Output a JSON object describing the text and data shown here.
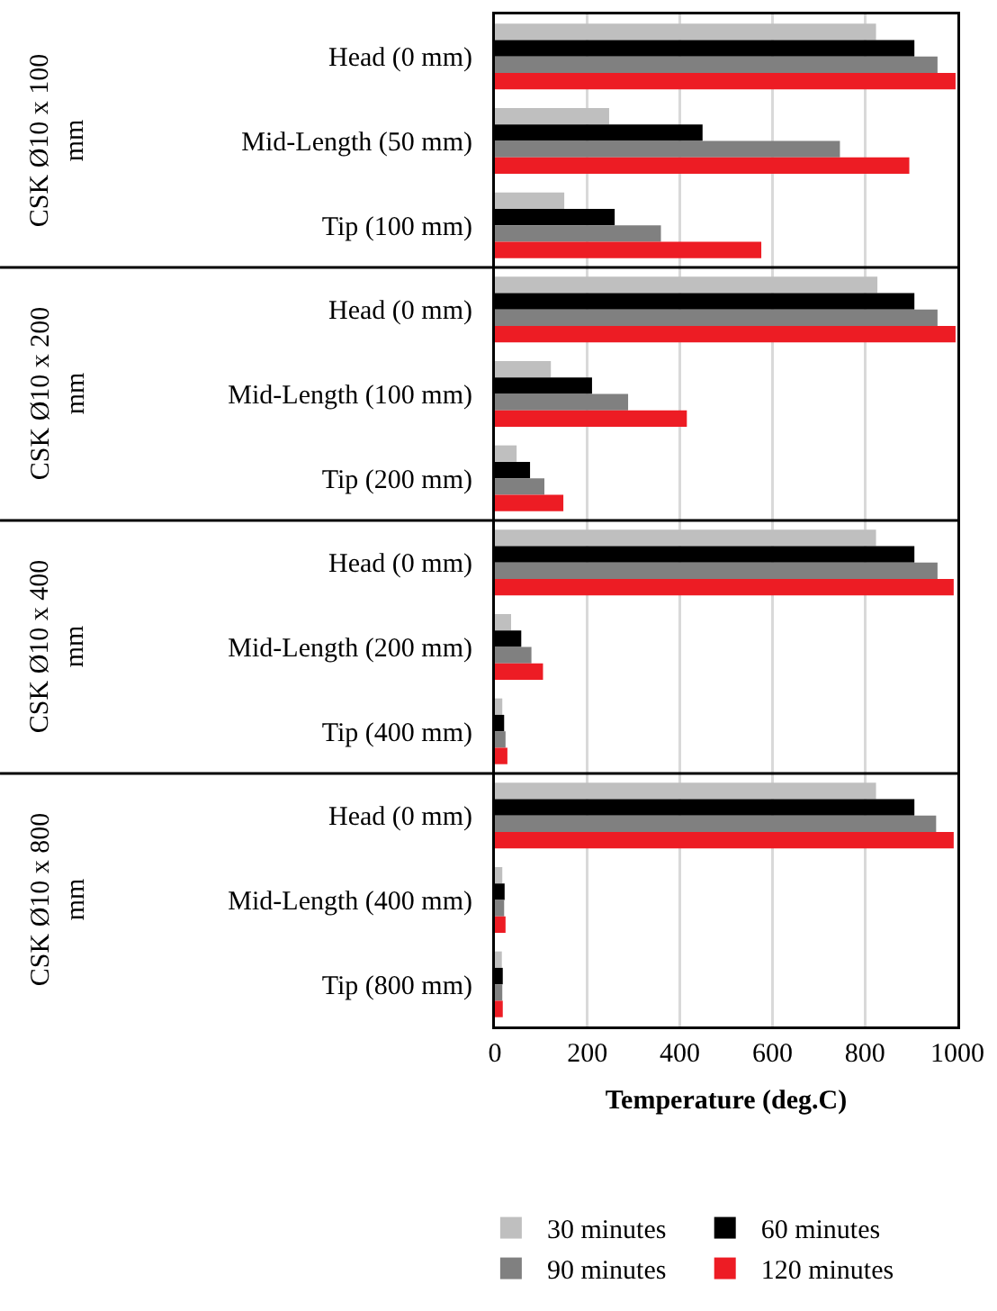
{
  "chart_data": {
    "type": "bar",
    "orientation": "horizontal",
    "xlabel": "Temperature (deg.C)",
    "categories": [
      "Head (0 mm)",
      "Mid-Length (50 mm)",
      "Tip (100 mm)",
      "Head (0 mm)",
      "Mid-Length (100 mm)",
      "Tip (200 mm)",
      "Head (0 mm)",
      "Mid-Length (200 mm)",
      "Tip (400 mm)",
      "Head (0 mm)",
      "Mid-Length (400 mm)",
      "Tip (800 mm)"
    ],
    "series": [
      {
        "name": "30 minutes",
        "color": "#bfbfbf",
        "values": [
          824,
          247,
          150,
          827,
          121,
          47,
          824,
          35,
          16,
          824,
          16,
          15
        ]
      },
      {
        "name": "60 minutes",
        "color": "#000000",
        "values": [
          907,
          449,
          259,
          907,
          210,
          76,
          907,
          57,
          20,
          907,
          21,
          17
        ]
      },
      {
        "name": "90 minutes",
        "color": "#808080",
        "values": [
          957,
          746,
          359,
          957,
          288,
          107,
          957,
          79,
          23,
          954,
          20,
          16
        ]
      },
      {
        "name": "120 minutes",
        "color": "#ed1c24",
        "values": [
          996,
          896,
          576,
          996,
          415,
          148,
          992,
          104,
          27,
          992,
          23,
          17
        ]
      }
    ],
    "annotations": [
      "CSK Ø10 x 100 mm",
      "CSK Ø10 x 200 mm",
      "CSK Ø10 x 400 mm",
      "CSK Ø10 x 800 mm"
    ],
    "xlim": [
      0,
      1000
    ],
    "xticks": [
      0,
      200,
      400,
      600,
      800,
      1000
    ],
    "grid": "x",
    "legend": "bottom"
  }
}
